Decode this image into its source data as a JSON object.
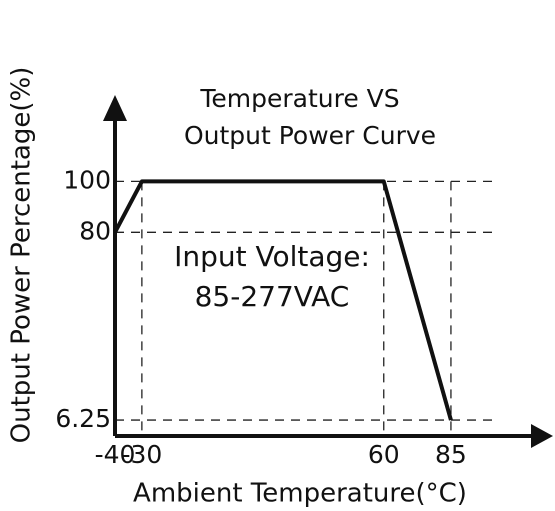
{
  "chart_data": {
    "type": "line",
    "title": [
      "Temperature VS",
      "Output Power Curve"
    ],
    "annotation": [
      "Input Voltage:",
      "85-277VAC"
    ],
    "x_label": "Ambient Temperature(°C)",
    "y_label": "Output Power Percentage(%)",
    "x": [
      -40,
      -30,
      60,
      85
    ],
    "series": [
      {
        "name": "Output Power",
        "color": "#111111",
        "values": [
          80,
          100,
          100,
          6.25
        ]
      }
    ],
    "xlim": [
      -40,
      120
    ],
    "xticks": [
      -40,
      -30,
      60,
      85
    ],
    "ylim": [
      0,
      130
    ],
    "yticks": [
      6.25,
      80,
      100
    ],
    "grid": true
  }
}
